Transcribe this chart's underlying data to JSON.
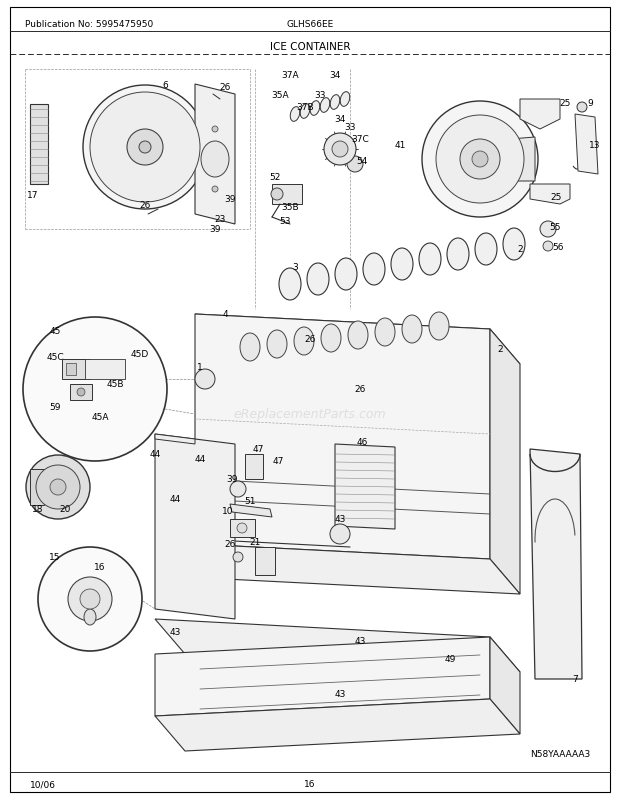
{
  "title": "ICE CONTAINER",
  "model": "GLHS66EE",
  "publication": "Publication No: 5995475950",
  "date": "10/06",
  "page": "16",
  "diagram_id": "N58YAAAAA3",
  "bg_color": "#ffffff",
  "text_color": "#000000",
  "fig_width": 6.2,
  "fig_height": 8.03,
  "dpi": 100,
  "watermark": "eReplacementParts.com",
  "lc": "#333333"
}
